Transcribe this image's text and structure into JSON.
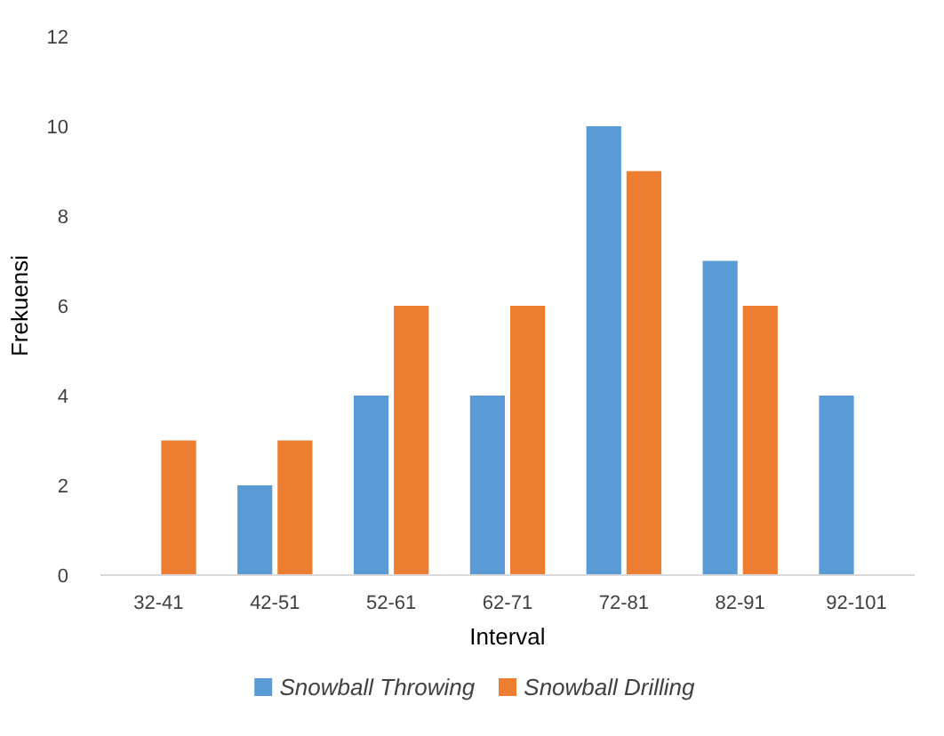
{
  "chart_data": {
    "type": "bar",
    "xlabel": "Interval",
    "ylabel": "Frekuensi",
    "categories": [
      "32-41",
      "42-51",
      "52-61",
      "62-71",
      "72-81",
      "82-91",
      "92-101"
    ],
    "series": [
      {
        "name": "Snowball Throwing",
        "color": "#5b9bd5",
        "values": [
          0,
          2,
          4,
          4,
          10,
          7,
          4
        ]
      },
      {
        "name": "Snowball Drilling",
        "color": "#ed7d31",
        "values": [
          3,
          3,
          6,
          6,
          9,
          6,
          0
        ]
      }
    ],
    "ylim": [
      0,
      12
    ],
    "yticks": [
      0,
      2,
      4,
      6,
      8,
      10,
      12
    ],
    "grid": false,
    "legend": "bottom"
  }
}
